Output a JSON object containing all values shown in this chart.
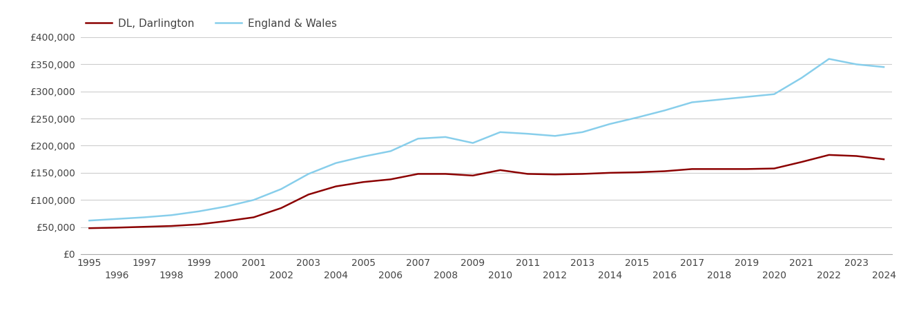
{
  "years": [
    1995,
    1996,
    1997,
    1998,
    1999,
    2000,
    2001,
    2002,
    2003,
    2004,
    2005,
    2006,
    2007,
    2008,
    2009,
    2010,
    2011,
    2012,
    2013,
    2014,
    2015,
    2016,
    2017,
    2018,
    2019,
    2020,
    2021,
    2022,
    2023,
    2024
  ],
  "darlington": [
    48000,
    49000,
    50500,
    52000,
    55000,
    61000,
    68000,
    85000,
    110000,
    125000,
    133000,
    138000,
    148000,
    148000,
    145000,
    155000,
    148000,
    147000,
    148000,
    150000,
    151000,
    153000,
    157000,
    157000,
    157000,
    158000,
    170000,
    183000,
    181000,
    175000
  ],
  "england_wales": [
    62000,
    65000,
    68000,
    72000,
    79000,
    88000,
    100000,
    120000,
    148000,
    168000,
    180000,
    190000,
    213000,
    216000,
    205000,
    225000,
    222000,
    218000,
    225000,
    240000,
    252000,
    265000,
    280000,
    285000,
    290000,
    295000,
    325000,
    360000,
    350000,
    345000
  ],
  "darlington_color": "#8B0000",
  "england_wales_color": "#87CEEB",
  "darlington_label": "DL, Darlington",
  "england_wales_label": "England & Wales",
  "ylim": [
    0,
    400000
  ],
  "yticks": [
    0,
    50000,
    100000,
    150000,
    200000,
    250000,
    300000,
    350000,
    400000
  ],
  "background_color": "#ffffff",
  "grid_color": "#cccccc",
  "line_width": 1.8,
  "legend_fontsize": 11,
  "tick_fontsize": 10,
  "tick_color": "#444444"
}
